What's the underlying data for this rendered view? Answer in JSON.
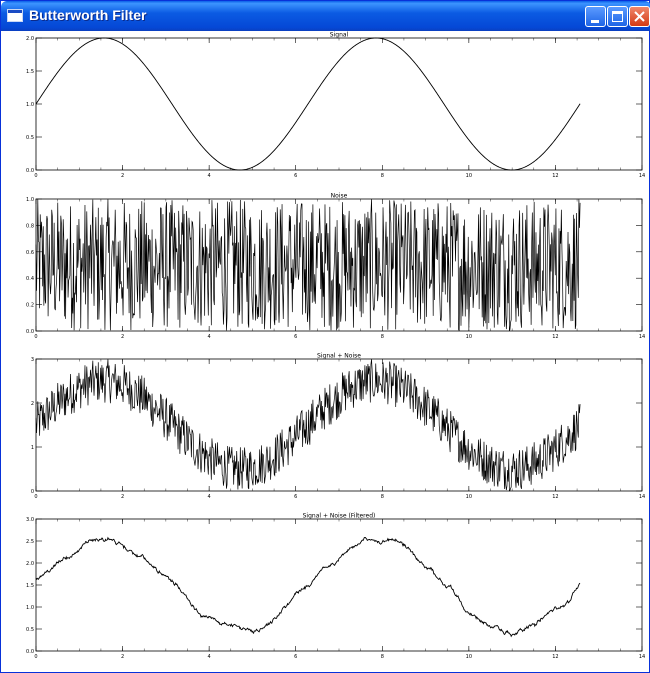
{
  "window": {
    "title": "Butterworth Filter",
    "icon": "window-app-icon",
    "buttons": [
      "minimize-icon",
      "maximize-icon",
      "close-icon"
    ],
    "colors": {
      "titlebar": "#0548d6",
      "close": "#d33a14",
      "plot_line": "#000000"
    }
  },
  "chart_data": [
    {
      "type": "line",
      "title": "Signal",
      "xlim": [
        0,
        14
      ],
      "ylim": [
        0,
        2
      ],
      "xticks": [
        "0",
        "2",
        "4",
        "6",
        "8",
        "10",
        "12",
        "14"
      ],
      "yticks": [
        "0.0",
        "0.5",
        "1.0",
        "1.5",
        "2.0"
      ],
      "grid": false,
      "series": [
        {
          "function": "1 + sin(x)",
          "x_range": [
            0,
            12.57
          ]
        }
      ]
    },
    {
      "type": "line",
      "title": "Noise",
      "xlim": [
        0,
        14
      ],
      "ylim": [
        0,
        1
      ],
      "xticks": [
        "0",
        "2",
        "4",
        "6",
        "8",
        "10",
        "12",
        "14"
      ],
      "yticks": [
        "0.0",
        "0.2",
        "0.4",
        "0.6",
        "0.8",
        "1.0"
      ],
      "grid": false,
      "series": [
        {
          "function": "uniform random in [0,1]",
          "x_range": [
            0,
            12.57
          ]
        }
      ]
    },
    {
      "type": "line",
      "title": "Signal + Noise",
      "xlim": [
        0,
        14
      ],
      "ylim": [
        0,
        3
      ],
      "xticks": [
        "0",
        "2",
        "4",
        "6",
        "8",
        "10",
        "12",
        "14"
      ],
      "yticks": [
        "0",
        "1",
        "2",
        "3"
      ],
      "grid": false,
      "series": [
        {
          "function": "1 + sin(x) + uniform random in [0,1]",
          "x_range": [
            0,
            12.57
          ]
        }
      ]
    },
    {
      "type": "line",
      "title": "Signal + Noise (Filtered)",
      "xlim": [
        0,
        14
      ],
      "ylim": [
        0,
        3
      ],
      "xticks": [
        "0",
        "2",
        "4",
        "6",
        "8",
        "10",
        "12",
        "14"
      ],
      "yticks": [
        "0.0",
        "0.5",
        "1.0",
        "1.5",
        "2.0",
        "2.5",
        "3.0"
      ],
      "grid": false,
      "series": [
        {
          "function": "1.5 + sin(x) (smoothed)",
          "x_range": [
            0,
            12.57
          ]
        }
      ]
    }
  ]
}
